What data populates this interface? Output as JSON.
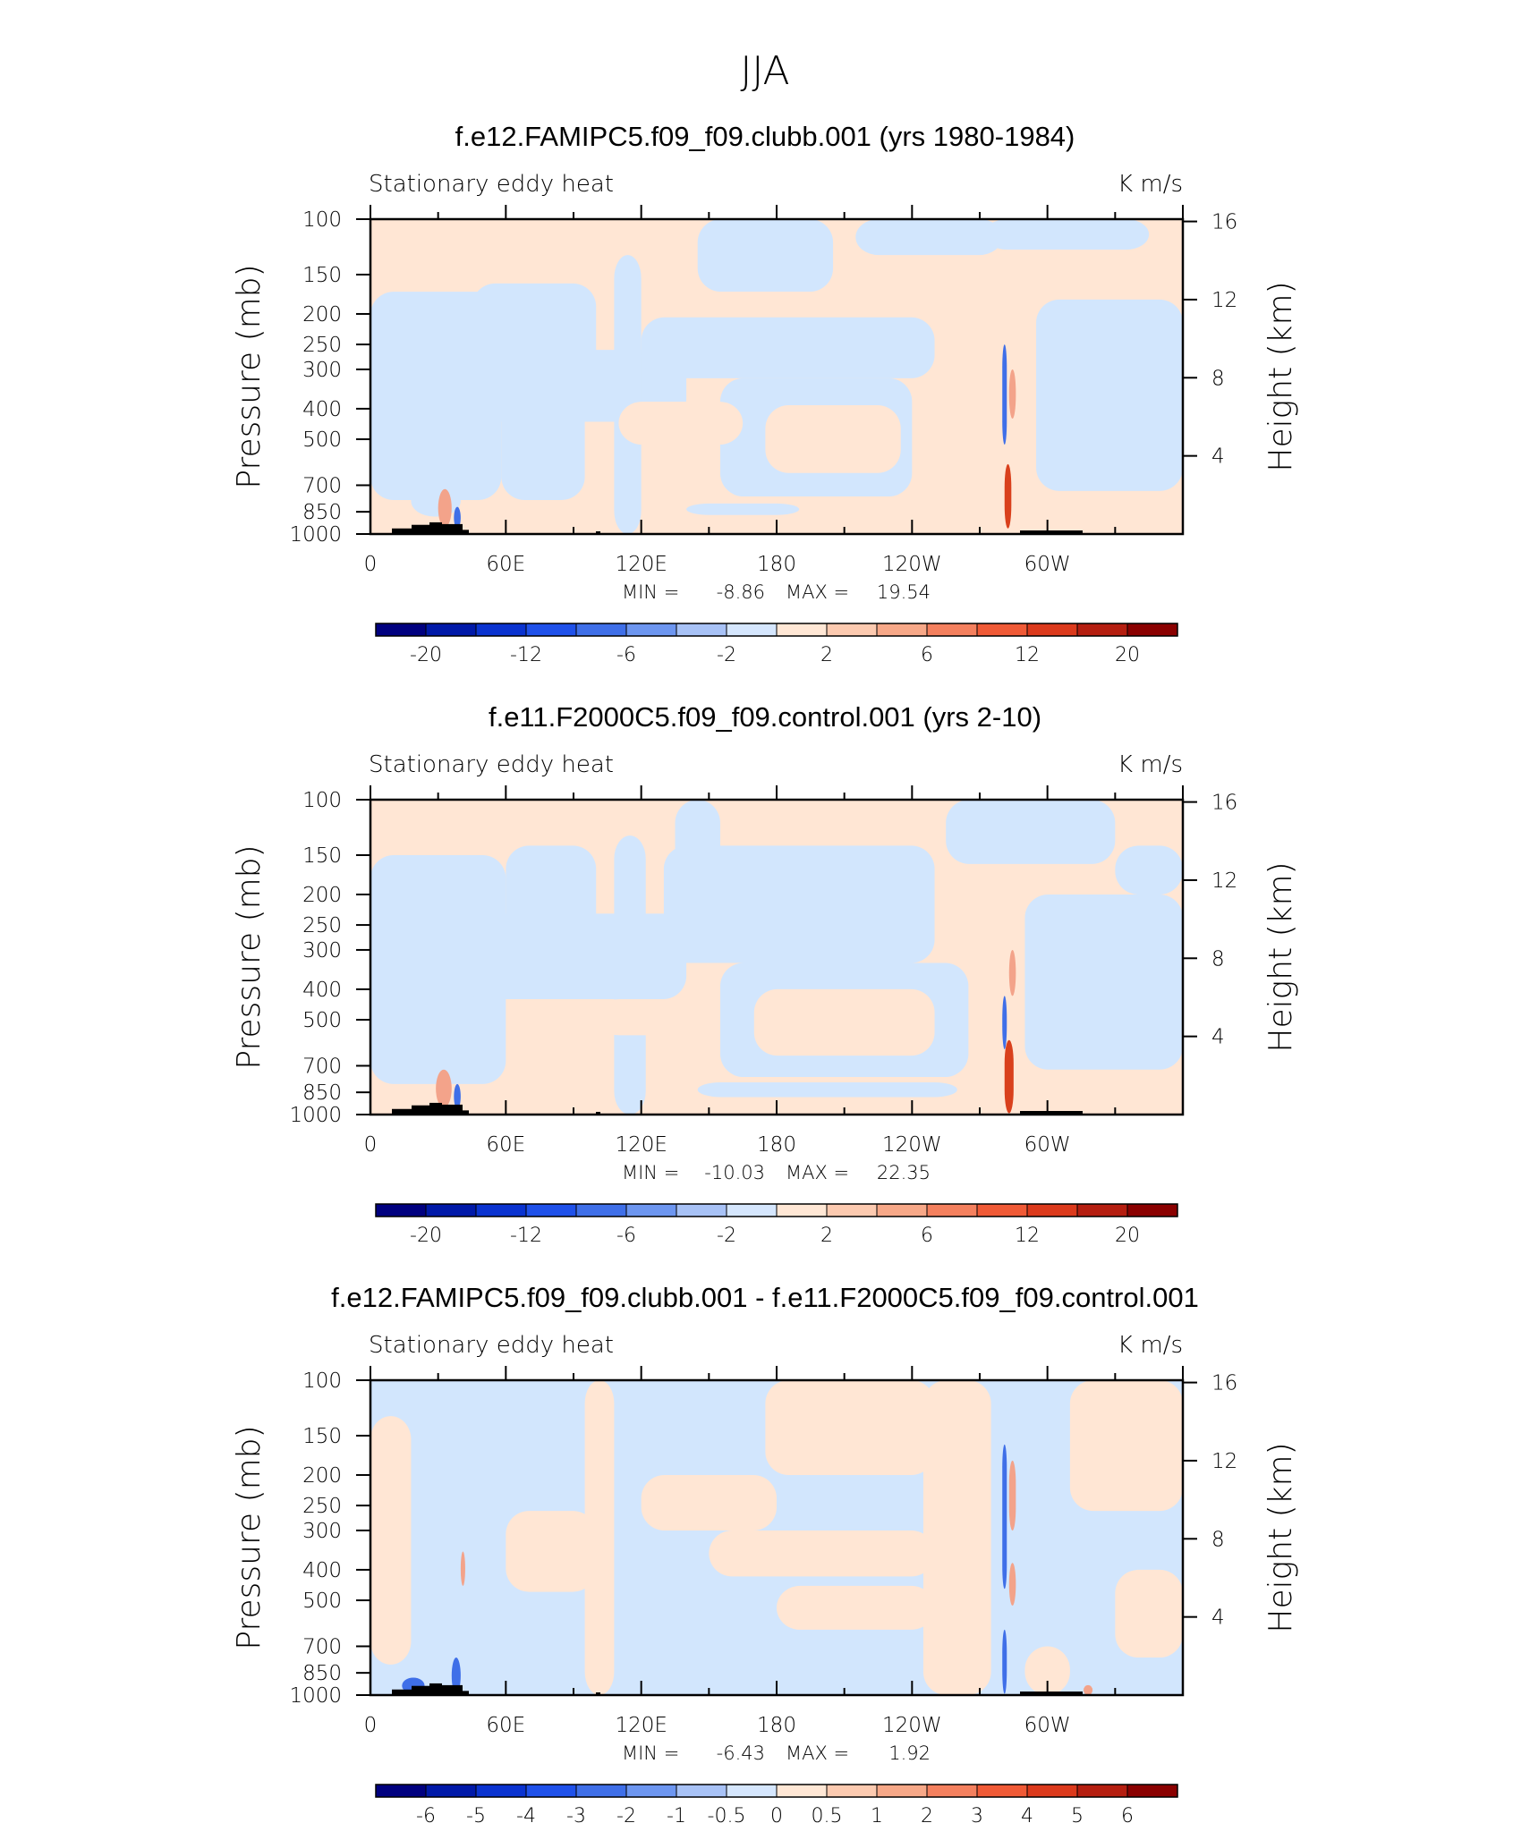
{
  "page_title": "JJA",
  "colors": {
    "background": "#ffffff",
    "axis": "#000000",
    "topography": "#000000"
  },
  "chart_data": [
    {
      "type": "heatmap",
      "title": "f.e12.FAMIPC5.f09_f09.clubb.001 (yrs 1980-1984)",
      "left_label": "Stationary eddy heat",
      "right_label": "K m/s",
      "ylabel": "Pressure (mb)",
      "ylabel_right": "Height (km)",
      "x_ticks": [
        "0",
        "60E",
        "120E",
        "180",
        "120W",
        "60W"
      ],
      "y_ticks": [
        "100",
        "150",
        "200",
        "250",
        "300",
        "400",
        "500",
        "700",
        "850",
        "1000"
      ],
      "y_ticks_right": [
        "16",
        "12",
        "8",
        "4"
      ],
      "min_label": "MIN =",
      "min_value": "-8.86",
      "max_label": "MAX =",
      "max_value": "19.54",
      "colorbar_labels": [
        "-20",
        "-12",
        "-6",
        "-2",
        "2",
        "6",
        "12",
        "20"
      ],
      "colorbar_colors": [
        "#00007f",
        "#0019a8",
        "#0a33d0",
        "#1f51ea",
        "#3f6fe8",
        "#6d96f0",
        "#a8c2f6",
        "#d5e6fd",
        "#ffe7d5",
        "#fccab0",
        "#f7a888",
        "#f4805e",
        "#f05a36",
        "#dc3a1c",
        "#b51e10",
        "#8a0000"
      ],
      "field": {
        "background": "pos",
        "features": [
          {
            "kind": "neg",
            "lon": [
              0,
              58
            ],
            "p": [
              170,
              780
            ]
          },
          {
            "kind": "neg",
            "lon": [
              18,
              40
            ],
            "p": [
              700,
              880
            ]
          },
          {
            "kind": "neg",
            "lon": [
              45,
              100
            ],
            "p": [
              160,
              330
            ]
          },
          {
            "kind": "neg",
            "lon": [
              40,
              140
            ],
            "p": [
              260,
              440
            ]
          },
          {
            "kind": "neg",
            "lon": [
              58,
              95
            ],
            "p": [
              180,
              780
            ]
          },
          {
            "kind": "neg",
            "lon": [
              108,
              120
            ],
            "p": [
              130,
              1000
            ]
          },
          {
            "kind": "neg",
            "lon": [
              120,
              250
            ],
            "p": [
              205,
              320
            ]
          },
          {
            "kind": "neg",
            "lon": [
              155,
              240
            ],
            "p": [
              320,
              760
            ]
          },
          {
            "kind": "neg",
            "lon": [
              145,
              205
            ],
            "p": [
              100,
              170
            ]
          },
          {
            "kind": "neg",
            "lon": [
              215,
              280
            ],
            "p": [
              100,
              130
            ]
          },
          {
            "kind": "neg",
            "lon": [
              272,
              345
            ],
            "p": [
              100,
              125
            ]
          },
          {
            "kind": "neg",
            "lon": [
              295,
              360
            ],
            "p": [
              180,
              730
            ]
          },
          {
            "kind": "neg",
            "lon": [
              140,
              190
            ],
            "p": [
              800,
              870
            ]
          },
          {
            "kind": "pos",
            "lon": [
              110,
              165
            ],
            "p": [
              380,
              520
            ]
          },
          {
            "kind": "pos",
            "lon": [
              175,
              235
            ],
            "p": [
              390,
              640
            ]
          },
          {
            "kind": "pos",
            "lon": [
              260,
              290
            ],
            "p": [
              640,
              820
            ]
          },
          {
            "kind": "hot",
            "lon": [
              281,
              284
            ],
            "p": [
              600,
              960
            ]
          },
          {
            "kind": "warm",
            "lon": [
              283,
              286
            ],
            "p": [
              300,
              430
            ]
          },
          {
            "kind": "cold",
            "lon": [
              280,
              282
            ],
            "p": [
              250,
              520
            ]
          },
          {
            "kind": "warm",
            "lon": [
              30,
              36
            ],
            "p": [
              720,
              950
            ]
          },
          {
            "kind": "cold",
            "lon": [
              37,
              40
            ],
            "p": [
              820,
              960
            ]
          }
        ]
      }
    },
    {
      "type": "heatmap",
      "title": "f.e11.F2000C5.f09_f09.control.001 (yrs 2-10)",
      "left_label": "Stationary eddy heat",
      "right_label": "K m/s",
      "ylabel": "Pressure (mb)",
      "ylabel_right": "Height (km)",
      "x_ticks": [
        "0",
        "60E",
        "120E",
        "180",
        "120W",
        "60W"
      ],
      "y_ticks": [
        "100",
        "150",
        "200",
        "250",
        "300",
        "400",
        "500",
        "700",
        "850",
        "1000"
      ],
      "y_ticks_right": [
        "16",
        "12",
        "8",
        "4"
      ],
      "min_label": "MIN =",
      "min_value": "-10.03",
      "max_label": "MAX =",
      "max_value": "22.35",
      "colorbar_labels": [
        "-20",
        "-12",
        "-6",
        "-2",
        "2",
        "6",
        "12",
        "20"
      ],
      "colorbar_colors": [
        "#00007f",
        "#0019a8",
        "#0a33d0",
        "#1f51ea",
        "#3f6fe8",
        "#6d96f0",
        "#a8c2f6",
        "#d5e6fd",
        "#ffe7d5",
        "#fccab0",
        "#f7a888",
        "#f4805e",
        "#f05a36",
        "#dc3a1c",
        "#b51e10",
        "#8a0000"
      ],
      "field": {
        "background": "pos",
        "features": [
          {
            "kind": "neg",
            "lon": [
              0,
              60
            ],
            "p": [
              150,
              800
            ]
          },
          {
            "kind": "neg",
            "lon": [
              60,
              100
            ],
            "p": [
              140,
              300
            ]
          },
          {
            "kind": "neg",
            "lon": [
              40,
              140
            ],
            "p": [
              230,
              430
            ]
          },
          {
            "kind": "neg",
            "lon": [
              108,
              122
            ],
            "p": [
              130,
              1000
            ]
          },
          {
            "kind": "neg",
            "lon": [
              130,
              250
            ],
            "p": [
              140,
              330
            ]
          },
          {
            "kind": "neg",
            "lon": [
              135,
              155
            ],
            "p": [
              100,
              190
            ]
          },
          {
            "kind": "neg",
            "lon": [
              155,
              265
            ],
            "p": [
              330,
              760
            ]
          },
          {
            "kind": "neg",
            "lon": [
              255,
              330
            ],
            "p": [
              100,
              160
            ]
          },
          {
            "kind": "neg",
            "lon": [
              290,
              360
            ],
            "p": [
              200,
              720
            ]
          },
          {
            "kind": "neg",
            "lon": [
              330,
              360
            ],
            "p": [
              140,
              200
            ]
          },
          {
            "kind": "neg",
            "lon": [
              145,
              260
            ],
            "p": [
              790,
              880
            ]
          },
          {
            "kind": "pos",
            "lon": [
              100,
              150
            ],
            "p": [
              430,
              560
            ]
          },
          {
            "kind": "pos",
            "lon": [
              170,
              250
            ],
            "p": [
              400,
              650
            ]
          },
          {
            "kind": "hot",
            "lon": [
              281,
              285
            ],
            "p": [
              580,
              990
            ]
          },
          {
            "kind": "warm",
            "lon": [
              283,
              286
            ],
            "p": [
              300,
              420
            ]
          },
          {
            "kind": "cold",
            "lon": [
              280,
              282
            ],
            "p": [
              420,
              620
            ]
          },
          {
            "kind": "warm",
            "lon": [
              29,
              36
            ],
            "p": [
              720,
              950
            ]
          },
          {
            "kind": "cold",
            "lon": [
              37,
              40
            ],
            "p": [
              800,
              960
            ]
          }
        ]
      }
    },
    {
      "type": "heatmap",
      "title": "f.e12.FAMIPC5.f09_f09.clubb.001 - f.e11.F2000C5.f09_f09.control.001",
      "left_label": "Stationary eddy heat",
      "right_label": "K m/s",
      "ylabel": "Pressure (mb)",
      "ylabel_right": "Height (km)",
      "x_ticks": [
        "0",
        "60E",
        "120E",
        "180",
        "120W",
        "60W"
      ],
      "y_ticks": [
        "100",
        "150",
        "200",
        "250",
        "300",
        "400",
        "500",
        "700",
        "850",
        "1000"
      ],
      "y_ticks_right": [
        "16",
        "12",
        "8",
        "4"
      ],
      "min_label": "MIN =",
      "min_value": "-6.43",
      "max_label": "MAX =",
      "max_value": "1.92",
      "colorbar_labels": [
        "-6",
        "-5",
        "-4",
        "-3",
        "-2",
        "-1",
        "-0.5",
        "0",
        "0.5",
        "1",
        "2",
        "3",
        "4",
        "5",
        "6"
      ],
      "colorbar_colors": [
        "#00007f",
        "#0019a8",
        "#0a33d0",
        "#1f51ea",
        "#3f6fe8",
        "#6d96f0",
        "#a8c2f6",
        "#d5e6fd",
        "#ffe7d5",
        "#fccab0",
        "#f7a888",
        "#f4805e",
        "#f05a36",
        "#dc3a1c",
        "#b51e10",
        "#8a0000"
      ],
      "field": {
        "background": "neg",
        "features": [
          {
            "kind": "pos",
            "lon": [
              0,
              18
            ],
            "p": [
              130,
              800
            ]
          },
          {
            "kind": "pos",
            "lon": [
              60,
              100
            ],
            "p": [
              260,
              470
            ]
          },
          {
            "kind": "pos",
            "lon": [
              95,
              108
            ],
            "p": [
              100,
              1000
            ]
          },
          {
            "kind": "pos",
            "lon": [
              120,
              180
            ],
            "p": [
              200,
              300
            ]
          },
          {
            "kind": "pos",
            "lon": [
              150,
              250
            ],
            "p": [
              300,
              420
            ]
          },
          {
            "kind": "pos",
            "lon": [
              175,
              250
            ],
            "p": [
              100,
              200
            ]
          },
          {
            "kind": "pos",
            "lon": [
              245,
              275
            ],
            "p": [
              100,
              1000
            ]
          },
          {
            "kind": "pos",
            "lon": [
              180,
              250
            ],
            "p": [
              450,
              620
            ]
          },
          {
            "kind": "pos",
            "lon": [
              290,
              310
            ],
            "p": [
              700,
              1000
            ]
          },
          {
            "kind": "pos",
            "lon": [
              310,
              360
            ],
            "p": [
              100,
              260
            ]
          },
          {
            "kind": "pos",
            "lon": [
              330,
              360
            ],
            "p": [
              400,
              760
            ]
          },
          {
            "kind": "warm",
            "lon": [
              283,
              286
            ],
            "p": [
              180,
              300
            ]
          },
          {
            "kind": "warm",
            "lon": [
              283,
              286
            ],
            "p": [
              380,
              520
            ]
          },
          {
            "kind": "cold",
            "lon": [
              280,
              282
            ],
            "p": [
              160,
              460
            ]
          },
          {
            "kind": "cold",
            "lon": [
              280,
              282
            ],
            "p": [
              620,
              990
            ]
          },
          {
            "kind": "cold",
            "lon": [
              36,
              40
            ],
            "p": [
              760,
              990
            ]
          },
          {
            "kind": "warm",
            "lon": [
              40,
              42
            ],
            "p": [
              350,
              450
            ]
          },
          {
            "kind": "cold",
            "lon": [
              14,
              24
            ],
            "p": [
              880,
              990
            ]
          },
          {
            "kind": "warm",
            "lon": [
              316,
              320
            ],
            "p": [
              930,
              1000
            ]
          }
        ]
      }
    }
  ]
}
